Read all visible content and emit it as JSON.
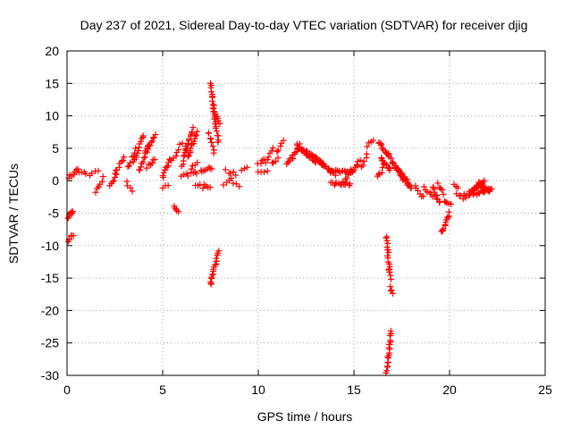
{
  "chart_data": {
    "type": "scatter",
    "title": "Day 237 of 2021, Sidereal Day-to-day VTEC variation (SDTVAR) for receiver djig",
    "xlabel": "GPS time / hours",
    "ylabel": "SDTVAR / TECUs",
    "xlim": [
      0,
      25
    ],
    "ylim": [
      -30,
      20
    ],
    "xticks": [
      0,
      5,
      10,
      15,
      20,
      25
    ],
    "yticks": [
      -30,
      -25,
      -20,
      -15,
      -10,
      -5,
      0,
      5,
      10,
      15,
      20
    ],
    "grid": true,
    "marker": "+",
    "color": "#ff0000",
    "series_segments": [
      {
        "x0": 0.05,
        "y0": -5.8,
        "x1": 0.3,
        "y1": -4.6,
        "n": 8
      },
      {
        "x0": 0.05,
        "y0": -9.2,
        "x1": 0.3,
        "y1": -8.3,
        "n": 6
      },
      {
        "x0": 0.0,
        "y0": 0.3,
        "x1": 0.6,
        "y1": 1.6,
        "n": 8
      },
      {
        "x0": 0.5,
        "y0": 1.5,
        "x1": 1.0,
        "y1": 1.2,
        "n": 5
      },
      {
        "x0": 1.2,
        "y0": 1.0,
        "x1": 1.6,
        "y1": 1.6,
        "n": 4
      },
      {
        "x0": 1.5,
        "y0": -1.8,
        "x1": 1.9,
        "y1": 0.5,
        "n": 6
      },
      {
        "x0": 2.2,
        "y0": -1.0,
        "x1": 2.6,
        "y1": 1.0,
        "n": 6
      },
      {
        "x0": 2.5,
        "y0": 1.0,
        "x1": 3.0,
        "y1": 3.5,
        "n": 8
      },
      {
        "x0": 3.1,
        "y0": 0.0,
        "x1": 3.4,
        "y1": -1.8,
        "n": 4
      },
      {
        "x0": 3.2,
        "y0": 2.0,
        "x1": 3.6,
        "y1": 5.0,
        "n": 7
      },
      {
        "x0": 3.5,
        "y0": 3.0,
        "x1": 4.0,
        "y1": 7.0,
        "n": 12
      },
      {
        "x0": 3.8,
        "y0": 1.5,
        "x1": 4.3,
        "y1": 5.5,
        "n": 12
      },
      {
        "x0": 4.1,
        "y0": 4.5,
        "x1": 4.6,
        "y1": 7.0,
        "n": 10
      },
      {
        "x0": 4.2,
        "y0": 2.0,
        "x1": 4.6,
        "y1": 3.5,
        "n": 6
      },
      {
        "x0": 5.0,
        "y0": 0.5,
        "x1": 5.4,
        "y1": 3.5,
        "n": 10
      },
      {
        "x0": 5.0,
        "y0": -1.0,
        "x1": 5.3,
        "y1": -0.5,
        "n": 3
      },
      {
        "x0": 5.5,
        "y0": 3.0,
        "x1": 6.0,
        "y1": 6.0,
        "n": 7
      },
      {
        "x0": 5.6,
        "y0": -3.8,
        "x1": 5.8,
        "y1": -5.0,
        "n": 5
      },
      {
        "x0": 6.0,
        "y0": 2.0,
        "x1": 6.3,
        "y1": 5.0,
        "n": 6
      },
      {
        "x0": 6.1,
        "y0": 4.0,
        "x1": 6.6,
        "y1": 8.0,
        "n": 14
      },
      {
        "x0": 6.3,
        "y0": 3.5,
        "x1": 6.8,
        "y1": 7.5,
        "n": 14
      },
      {
        "x0": 6.5,
        "y0": 2.0,
        "x1": 6.8,
        "y1": 3.0,
        "n": 4
      },
      {
        "x0": 6.0,
        "y0": 0.8,
        "x1": 6.8,
        "y1": 1.2,
        "n": 8
      },
      {
        "x0": 6.7,
        "y0": -0.5,
        "x1": 7.1,
        "y1": -1.0,
        "n": 4
      },
      {
        "x0": 7.0,
        "y0": 1.5,
        "x1": 7.6,
        "y1": 2.0,
        "n": 8
      },
      {
        "x0": 7.2,
        "y0": -0.5,
        "x1": 7.5,
        "y1": -1.2,
        "n": 4
      },
      {
        "x0": 7.5,
        "y0": 15.0,
        "x1": 7.9,
        "y1": 6.0,
        "n": 24
      },
      {
        "x0": 7.6,
        "y0": 11.0,
        "x1": 8.0,
        "y1": 9.0,
        "n": 8
      },
      {
        "x0": 7.4,
        "y0": 7.5,
        "x1": 7.7,
        "y1": 4.5,
        "n": 8
      },
      {
        "x0": 7.5,
        "y0": -16.0,
        "x1": 7.9,
        "y1": -11.0,
        "n": 18
      },
      {
        "x0": 8.2,
        "y0": -0.5,
        "x1": 8.6,
        "y1": 0.5,
        "n": 4
      },
      {
        "x0": 8.3,
        "y0": 1.5,
        "x1": 8.8,
        "y1": 1.0,
        "n": 5
      },
      {
        "x0": 8.7,
        "y0": -0.5,
        "x1": 9.0,
        "y1": -0.8,
        "n": 3
      },
      {
        "x0": 9.1,
        "y0": 1.5,
        "x1": 9.4,
        "y1": 2.0,
        "n": 3
      },
      {
        "x0": 10.0,
        "y0": 2.5,
        "x1": 10.3,
        "y1": 3.5,
        "n": 4
      },
      {
        "x0": 10.0,
        "y0": 1.5,
        "x1": 10.5,
        "y1": 1.5,
        "n": 4
      },
      {
        "x0": 10.4,
        "y0": 3.0,
        "x1": 10.8,
        "y1": 5.0,
        "n": 6
      },
      {
        "x0": 10.7,
        "y0": 2.5,
        "x1": 11.0,
        "y1": 3.5,
        "n": 4
      },
      {
        "x0": 11.0,
        "y0": 4.5,
        "x1": 11.3,
        "y1": 6.0,
        "n": 5
      },
      {
        "x0": 11.5,
        "y0": 2.5,
        "x1": 12.2,
        "y1": 5.5,
        "n": 14
      },
      {
        "x0": 12.0,
        "y0": 5.5,
        "x1": 13.0,
        "y1": 3.0,
        "n": 22
      },
      {
        "x0": 12.5,
        "y0": 4.5,
        "x1": 13.4,
        "y1": 2.5,
        "n": 16
      },
      {
        "x0": 13.2,
        "y0": 3.0,
        "x1": 14.0,
        "y1": 1.0,
        "n": 18
      },
      {
        "x0": 13.8,
        "y0": 1.5,
        "x1": 15.0,
        "y1": 1.5,
        "n": 18
      },
      {
        "x0": 13.8,
        "y0": -0.5,
        "x1": 14.8,
        "y1": -0.5,
        "n": 14
      },
      {
        "x0": 14.5,
        "y0": 0.0,
        "x1": 15.3,
        "y1": 3.0,
        "n": 14
      },
      {
        "x0": 15.4,
        "y0": 2.0,
        "x1": 15.7,
        "y1": 4.0,
        "n": 5
      },
      {
        "x0": 15.7,
        "y0": 5.5,
        "x1": 16.0,
        "y1": 6.0,
        "n": 4
      },
      {
        "x0": 16.2,
        "y0": 0.5,
        "x1": 16.5,
        "y1": 1.8,
        "n": 5
      },
      {
        "x0": 16.3,
        "y0": 6.0,
        "x1": 16.9,
        "y1": 3.5,
        "n": 16
      },
      {
        "x0": 16.4,
        "y0": 3.5,
        "x1": 16.9,
        "y1": 1.5,
        "n": 12
      },
      {
        "x0": 16.7,
        "y0": -8.5,
        "x1": 16.9,
        "y1": -15.0,
        "n": 18
      },
      {
        "x0": 16.9,
        "y0": -16.5,
        "x1": 17.0,
        "y1": -17.5,
        "n": 4
      },
      {
        "x0": 16.7,
        "y0": -29.5,
        "x1": 16.95,
        "y1": -23.0,
        "n": 20
      },
      {
        "x0": 17.0,
        "y0": 3.0,
        "x1": 17.6,
        "y1": 0.5,
        "n": 14
      },
      {
        "x0": 17.2,
        "y0": 2.0,
        "x1": 17.9,
        "y1": -0.5,
        "n": 16
      },
      {
        "x0": 17.5,
        "y0": 0.5,
        "x1": 18.0,
        "y1": -1.2,
        "n": 10
      },
      {
        "x0": 18.2,
        "y0": -1.0,
        "x1": 18.6,
        "y1": -2.5,
        "n": 6
      },
      {
        "x0": 18.7,
        "y0": -1.0,
        "x1": 19.1,
        "y1": -2.5,
        "n": 6
      },
      {
        "x0": 19.1,
        "y0": -1.0,
        "x1": 19.5,
        "y1": -3.5,
        "n": 10
      },
      {
        "x0": 19.4,
        "y0": -0.5,
        "x1": 19.7,
        "y1": -2.0,
        "n": 5
      },
      {
        "x0": 19.6,
        "y0": -8.0,
        "x1": 20.0,
        "y1": -5.0,
        "n": 12
      },
      {
        "x0": 19.7,
        "y0": -3.0,
        "x1": 20.1,
        "y1": -3.5,
        "n": 5
      },
      {
        "x0": 20.2,
        "y0": -0.8,
        "x1": 20.4,
        "y1": -1.2,
        "n": 3
      },
      {
        "x0": 20.4,
        "y0": -2.0,
        "x1": 20.8,
        "y1": -2.8,
        "n": 5
      },
      {
        "x0": 20.8,
        "y0": -2.2,
        "x1": 21.3,
        "y1": -1.8,
        "n": 6
      },
      {
        "x0": 21.0,
        "y0": -2.0,
        "x1": 21.6,
        "y1": -0.5,
        "n": 12
      },
      {
        "x0": 21.2,
        "y0": -1.5,
        "x1": 21.8,
        "y1": 0.0,
        "n": 12
      },
      {
        "x0": 21.4,
        "y0": -2.0,
        "x1": 22.2,
        "y1": -1.2,
        "n": 14
      },
      {
        "x0": 21.5,
        "y0": -0.5,
        "x1": 22.1,
        "y1": -1.5,
        "n": 10
      }
    ]
  }
}
